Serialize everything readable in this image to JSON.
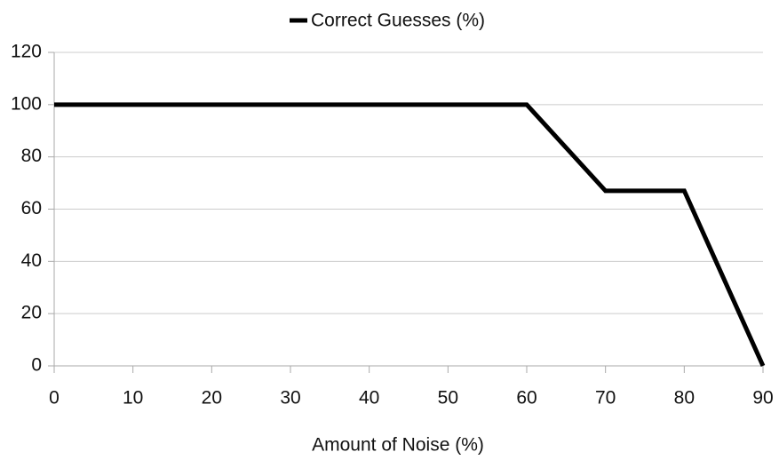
{
  "chart_data": {
    "type": "line",
    "x": [
      0,
      10,
      20,
      30,
      40,
      50,
      60,
      70,
      80,
      90
    ],
    "series": [
      {
        "name": "Correct Guesses (%)",
        "color": "#000000",
        "values": [
          100,
          100,
          100,
          100,
          100,
          100,
          100,
          67,
          67,
          0
        ]
      }
    ],
    "xlabel": "Amount of Noise (%)",
    "xlim": [
      0,
      90
    ],
    "xticks": [
      0,
      10,
      20,
      30,
      40,
      50,
      60,
      70,
      80,
      90
    ],
    "ylim": [
      0,
      120
    ],
    "yticks": [
      0,
      20,
      40,
      60,
      80,
      100,
      120
    ],
    "grid": true,
    "legend": "top"
  }
}
